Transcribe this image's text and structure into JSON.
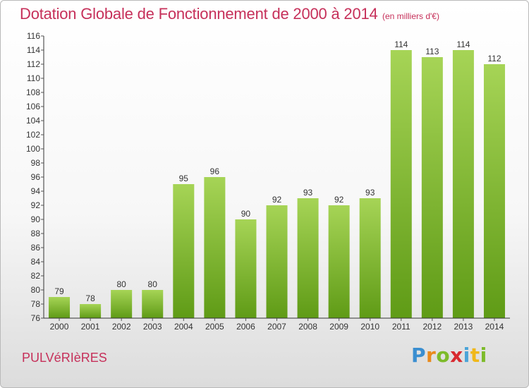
{
  "title": "Dotation Globale de Fonctionnement de 2000 à 2014",
  "subtitle": "(en milliers d'€)",
  "commune": "PULVéRIèRES",
  "logo": {
    "p": "P",
    "r": "r",
    "o": "o",
    "x": "x",
    "i": "i",
    "t": "t",
    "i2": "i"
  },
  "colors": {
    "title": "#c6305a",
    "bar_top": "#a6d456",
    "bar_bottom": "#5f9b16",
    "axis": "#333333",
    "grid_tick": "#555555"
  },
  "chart_data": {
    "type": "bar",
    "title": "Dotation Globale de Fonctionnement de 2000 à 2014",
    "subtitle": "(en milliers d'€)",
    "xlabel": "",
    "ylabel": "",
    "categories": [
      "2000",
      "2001",
      "2002",
      "2003",
      "2004",
      "2005",
      "2006",
      "2007",
      "2008",
      "2009",
      "2010",
      "2011",
      "2012",
      "2013",
      "2014"
    ],
    "values": [
      79,
      78,
      80,
      80,
      95,
      96,
      90,
      92,
      93,
      92,
      93,
      114,
      113,
      114,
      112
    ],
    "ylim": [
      76,
      116
    ],
    "yticks": [
      76,
      78,
      80,
      82,
      84,
      86,
      88,
      90,
      92,
      94,
      96,
      98,
      100,
      102,
      104,
      106,
      108,
      110,
      112,
      114,
      116
    ],
    "grid": false,
    "data_labels": true
  }
}
